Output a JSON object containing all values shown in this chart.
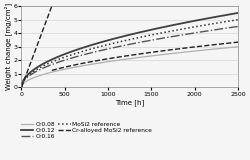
{
  "title": "",
  "xlabel": "Time [h]",
  "ylabel": "Weight change [mg/cm²]",
  "xlim": [
    0,
    2500
  ],
  "ylim": [
    0.0,
    6.0
  ],
  "xticks": [
    0,
    500,
    1000,
    1500,
    2000,
    2500
  ],
  "yticks": [
    0.0,
    1.0,
    2.0,
    3.0,
    4.0,
    5.0,
    6.0
  ],
  "series": [
    {
      "name": "Cr0.08",
      "type": "sqrt",
      "scale": 0.06,
      "color": "#b0b0b0",
      "linestyle": "solid",
      "linewidth": 0.9
    },
    {
      "name": "Cr0.12",
      "type": "sqrt",
      "scale": 0.11,
      "color": "#404040",
      "linestyle": "solid",
      "linewidth": 1.3
    },
    {
      "name": "Cr0.16",
      "type": "sqrt",
      "scale": 0.09,
      "color": "#555555",
      "linestyle": "dashdot",
      "linewidth": 1.0
    },
    {
      "name": "MoSi2 reference",
      "type": "sqrt",
      "scale": 0.1,
      "color": "#333333",
      "linestyle": "dotted",
      "linewidth": 1.1
    },
    {
      "name": "Cr-alloyed MoSi2 reference",
      "type": "plateau",
      "rise_end_x": 350,
      "rise_end_y": 6.0,
      "plateau_y": 1.25,
      "color": "#222222",
      "linestyle": "dashed",
      "linewidth": 1.0
    }
  ],
  "background_color": "#f5f5f5",
  "label_fontsize": 5.0,
  "tick_fontsize": 4.5,
  "legend_fontsize": 4.2
}
